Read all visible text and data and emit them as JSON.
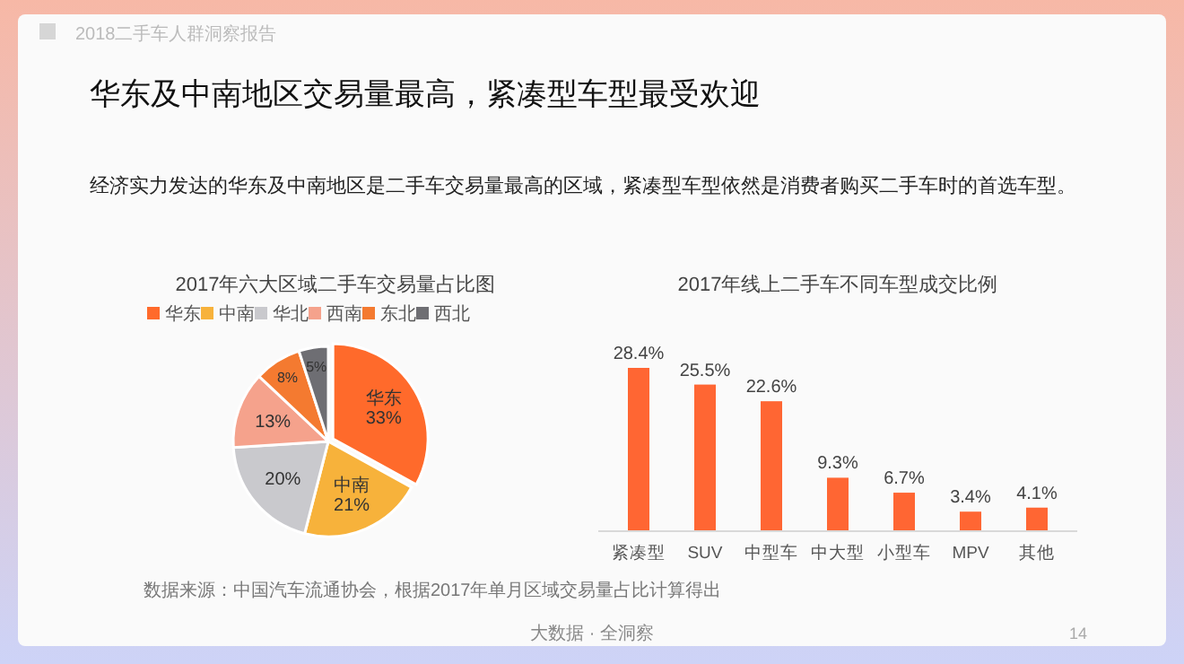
{
  "chart_data": [
    {
      "type": "other",
      "title": "2018二手车人群洞察报告",
      "subtitle": "华东及中南地区交易量最高，紧凑型车型最受欢迎",
      "annotations": [
        "经济实力发达的华东及中南地区是二手车交易量最高的区域，紧凑型车型依然是消费者购买二手车时的首选车型。",
        "大数据 · 全洞察",
        "14"
      ]
    },
    {
      "type": "pie",
      "title": "2017年六大区域二手车交易量占比图",
      "categories": [
        "华东",
        "中南",
        "华北",
        "西南",
        "东北",
        "西北"
      ],
      "values": [
        33,
        21,
        20,
        13,
        8,
        5
      ],
      "colors": [
        "#ff6a2b",
        "#f7b23b",
        "#c9c9cd",
        "#f5a28c",
        "#f47a30",
        "#6e6e73"
      ],
      "value_labels": [
        "华东\n33%",
        "中南\n21%",
        "20%",
        "13%",
        "8%",
        "5%"
      ],
      "legend": "top",
      "annotations": [
        "数据来源：中国汽车流通协会，根据2017年单月区域交易量占比计算得出"
      ]
    },
    {
      "type": "bar",
      "title": "2017年线上二手车不同车型成交比例",
      "categories": [
        "紧凑型",
        "SUV",
        "中型车",
        "中大型",
        "小型车",
        "MPV",
        "其他"
      ],
      "values": [
        28.4,
        25.5,
        22.6,
        9.3,
        6.7,
        3.4,
        4.1
      ],
      "color": "#ff6633",
      "value_labels": [
        "28.4%",
        "25.5%",
        "22.6%",
        "9.3%",
        "6.7%",
        "3.4%",
        "4.1%"
      ]
    }
  ]
}
